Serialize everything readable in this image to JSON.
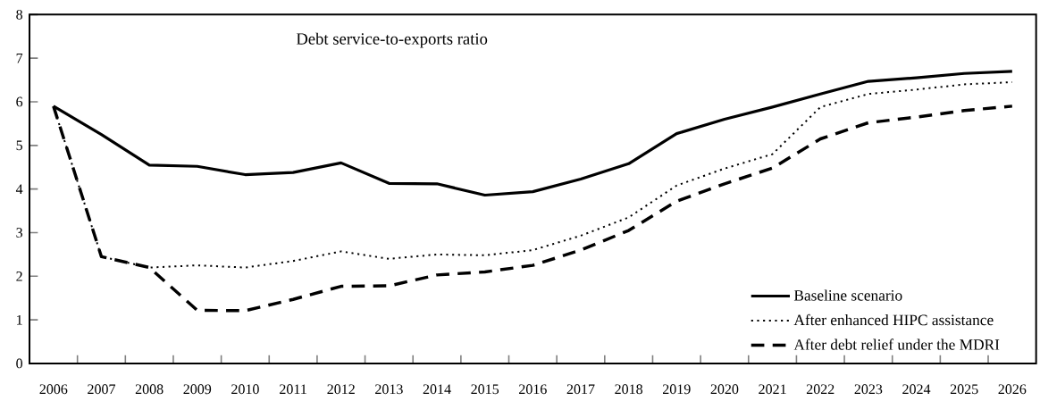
{
  "chart_data": {
    "type": "line",
    "title": "Debt service-to-exports ratio",
    "categories": [
      "2006",
      "2007",
      "2008",
      "2009",
      "2010",
      "2011",
      "2012",
      "2013",
      "2014",
      "2015",
      "2016",
      "2017",
      "2018",
      "2019",
      "2020",
      "2021",
      "2022",
      "2023",
      "2024",
      "2025",
      "2026"
    ],
    "series": [
      {
        "name": "Baseline scenario",
        "color": "#000000",
        "line_style": "solid",
        "values": [
          5.9,
          5.25,
          4.55,
          4.52,
          4.33,
          4.38,
          4.6,
          4.13,
          4.12,
          3.86,
          3.94,
          4.23,
          4.58,
          5.27,
          5.6,
          5.88,
          6.18,
          6.47,
          6.55,
          6.65,
          6.7
        ]
      },
      {
        "name": "After enhanced HIPC assistance",
        "color": "#000000",
        "line_style": "dotted",
        "values": [
          5.9,
          2.45,
          2.2,
          2.25,
          2.2,
          2.35,
          2.57,
          2.4,
          2.5,
          2.48,
          2.6,
          2.93,
          3.35,
          4.08,
          4.47,
          4.8,
          5.88,
          6.18,
          6.28,
          6.4,
          6.45
        ]
      },
      {
        "name": "After debt relief under the MDRI",
        "color": "#000000",
        "line_style": "dashed",
        "values": [
          5.9,
          2.45,
          2.2,
          1.22,
          1.21,
          1.47,
          1.77,
          1.78,
          2.03,
          2.1,
          2.25,
          2.6,
          3.05,
          3.72,
          4.12,
          4.48,
          5.15,
          5.52,
          5.65,
          5.8,
          5.9
        ]
      }
    ],
    "ylim": [
      0,
      8
    ],
    "yticks": [
      0,
      1,
      2,
      3,
      4,
      5,
      6,
      7,
      8
    ],
    "grid": false,
    "legend": "bottom right"
  }
}
